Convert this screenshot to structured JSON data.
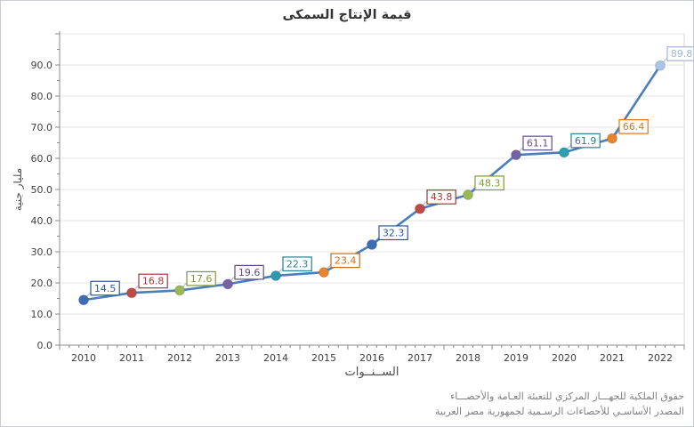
{
  "title": "قيمة الإنتاج السمكى",
  "footer": {
    "line1": "حقوق الملكية للجهـــاز المركزي للتعبئة العـامة والأحصـــاء",
    "line2": "المصدر الأساسـي للأحصاءات الرسـمية لجمهورية مصر العربية"
  },
  "chart_data": {
    "type": "line",
    "title": "قيمة الإنتاج السمكى",
    "xlabel": "الســنــوات",
    "ylabel": "مليار جنية",
    "x": [
      2010,
      2011,
      2012,
      2013,
      2014,
      2015,
      2016,
      2017,
      2018,
      2019,
      2020,
      2021,
      2022
    ],
    "values": [
      14.5,
      16.8,
      17.6,
      19.6,
      22.3,
      23.4,
      32.3,
      43.8,
      48.3,
      61.1,
      61.9,
      66.4,
      89.8
    ],
    "ylim": [
      0,
      100
    ],
    "ytick_step": 10,
    "ytick_labeled_max": 90,
    "ytick_decimals": 1,
    "grid": "horizontal",
    "legend": "none",
    "line_color": "#4a7ebb",
    "point_colors": [
      "#3c6db7",
      "#be4b48",
      "#98b954",
      "#7862a2",
      "#2e9bac",
      "#e8832e",
      "#3c6db7",
      "#be4b48",
      "#98b954",
      "#7862a2",
      "#2aa0b0",
      "#e8832e",
      "#a9c4e9"
    ],
    "label_colors": [
      "#31569b",
      "#9e3a38",
      "#7e9a35",
      "#5f4b8b",
      "#27808f",
      "#c96a14",
      "#31569b",
      "#9e3a38",
      "#7e9a35",
      "#5f4b8b",
      "#27808f",
      "#d4791f",
      "#9fb6d3"
    ],
    "grid_color": "#e4e4e4",
    "axis_color": "#8a8a8a",
    "tick_label_color": "#404040"
  }
}
